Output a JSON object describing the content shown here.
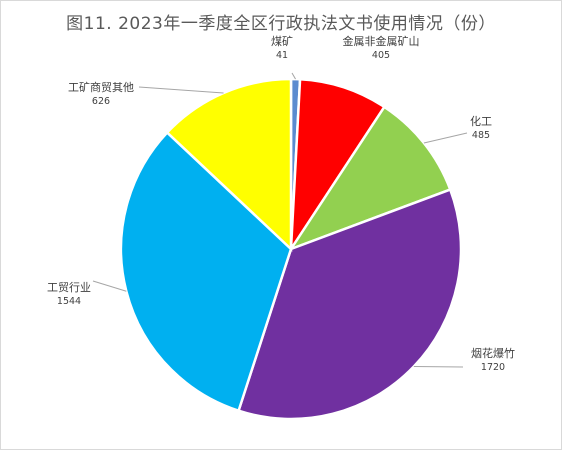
{
  "chart_data": {
    "type": "pie",
    "title": "图11. 2023年一季度全区行政执法文书使用情况（份）",
    "slices": [
      {
        "label": "煤矿",
        "value": 41,
        "color": "#5b8bd0"
      },
      {
        "label": "金属非金属矿山",
        "value": 405,
        "color": "#ff0000"
      },
      {
        "label": "化工",
        "value": 485,
        "color": "#92d050"
      },
      {
        "label": "烟花爆竹",
        "value": 1720,
        "color": "#7030a0"
      },
      {
        "label": "工贸行业",
        "value": 1544,
        "color": "#00b0f0"
      },
      {
        "label": "工矿商贸其他",
        "value": 626,
        "color": "#ffff00"
      }
    ],
    "legend": "none",
    "start_angle": "top",
    "direction": "clockwise"
  }
}
